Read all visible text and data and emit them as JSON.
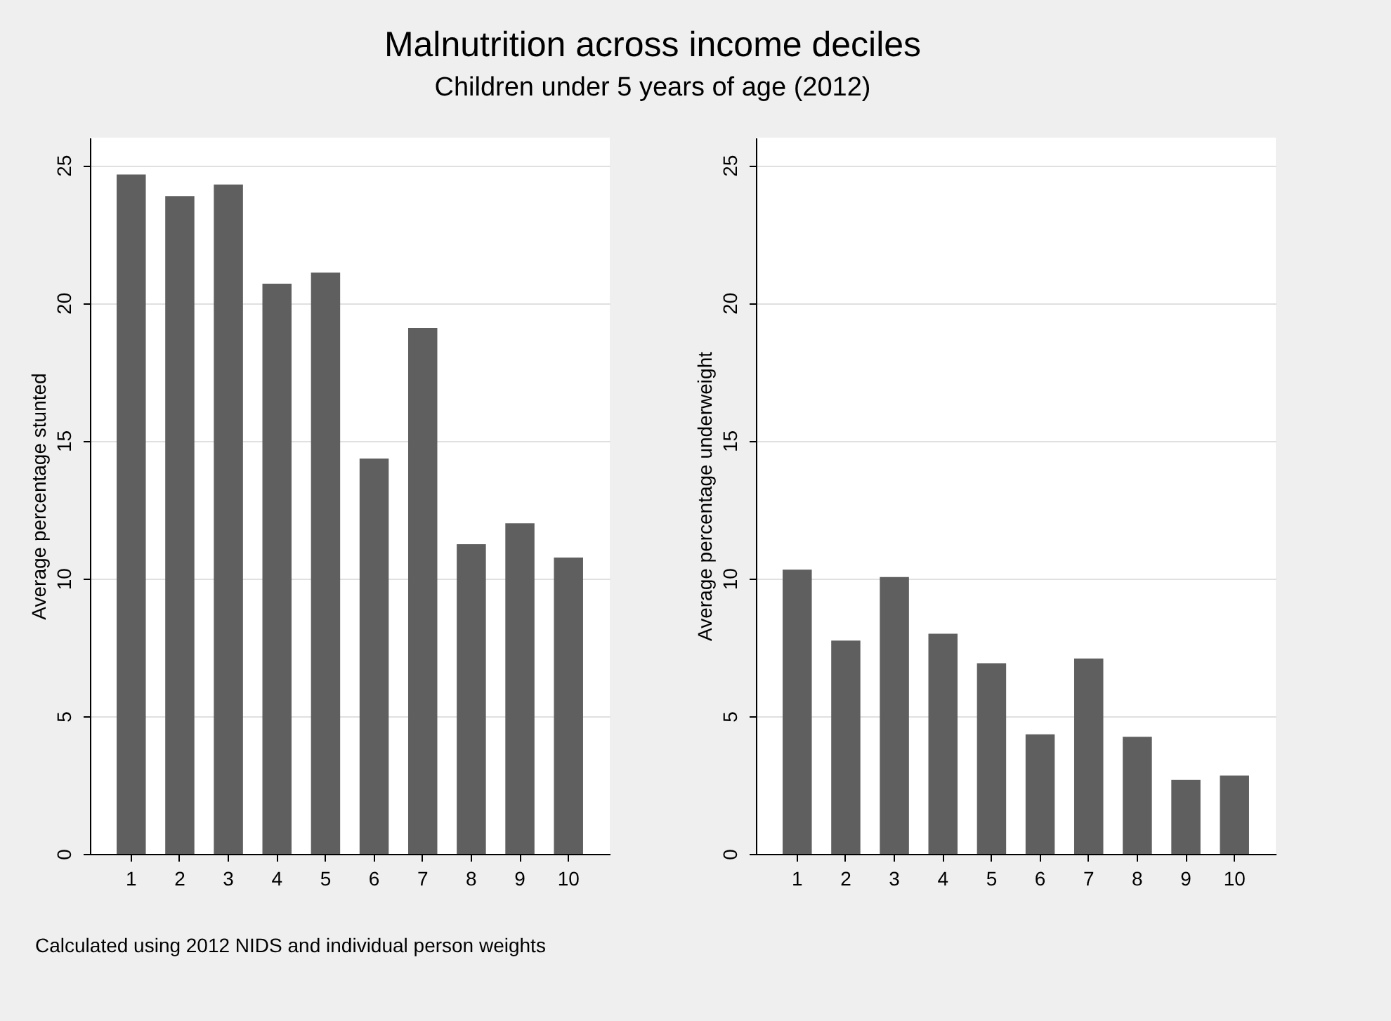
{
  "chart_data": [
    {
      "type": "bar",
      "title": "Malnutrition across income deciles",
      "subtitle": "Children under 5 years of age (2012)",
      "annotations": [
        "Calculated using 2012 NIDS and individual person weights"
      ],
      "categories": [
        "1",
        "2",
        "3",
        "4",
        "5",
        "6",
        "7",
        "8",
        "9",
        "10"
      ],
      "values": [
        24.66,
        23.88,
        24.3,
        20.7,
        21.1,
        14.35,
        19.09,
        11.24,
        12.0,
        10.76
      ],
      "color": "#5f5f5f",
      "ylabel": "Average percentage stunted",
      "ylim": [
        0,
        26
      ],
      "yticks": [
        0,
        5,
        10,
        15,
        20,
        25
      ],
      "grid": "y"
    },
    {
      "type": "bar",
      "categories": [
        "1",
        "2",
        "3",
        "4",
        "5",
        "6",
        "7",
        "8",
        "9",
        "10"
      ],
      "values": [
        10.32,
        7.74,
        10.05,
        7.99,
        6.92,
        4.34,
        7.09,
        4.25,
        2.68,
        2.84
      ],
      "color": "#5f5f5f",
      "ylabel": "Average percentage underweight",
      "ylim": [
        0,
        26
      ],
      "yticks": [
        0,
        5,
        10,
        15,
        20,
        25
      ],
      "grid": "y"
    }
  ]
}
